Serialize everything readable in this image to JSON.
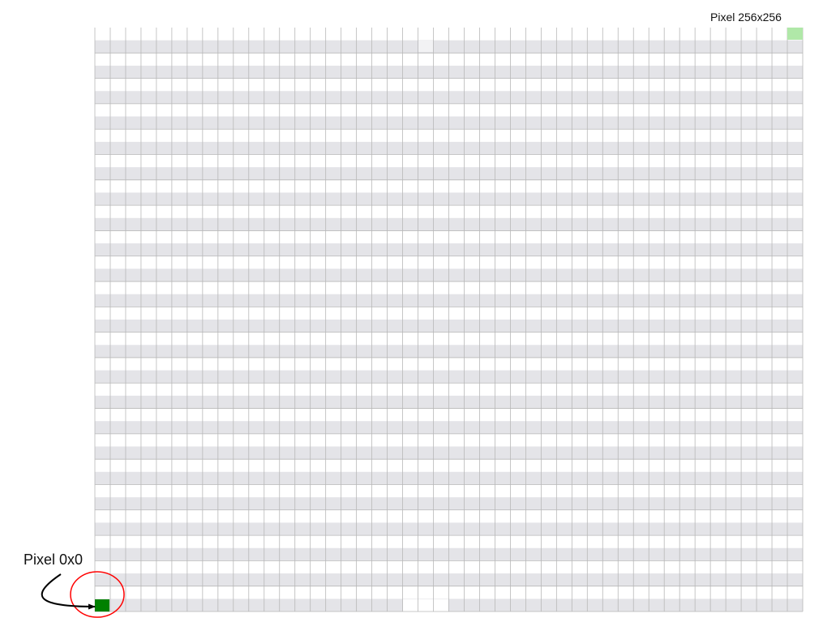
{
  "labels": {
    "top_right": "Pixel 256x256",
    "bottom_left": "Pixel 0x0"
  },
  "grid": {
    "columns": 46,
    "rows": 46,
    "stripe_color": "#e4e4e8",
    "line_color": "#b8b8b8",
    "background": "#ffffff"
  },
  "highlights": {
    "origin_pixel_color": "#008000",
    "corner_pixel_color": "#b0e8a8",
    "callout_circle_color": "#ff0000",
    "arrow_color": "#000000"
  }
}
